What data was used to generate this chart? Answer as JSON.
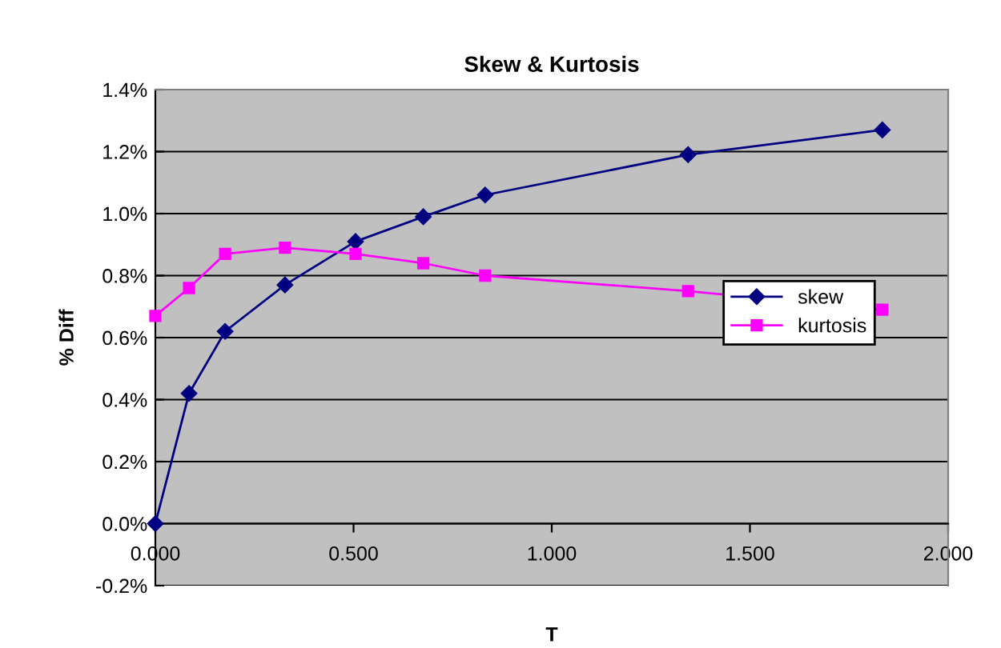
{
  "chart_data": {
    "type": "line",
    "title": "Skew & Kurtosis",
    "xlabel": "T",
    "ylabel": "% Diff",
    "xlim": [
      0,
      2
    ],
    "xticks": [
      {
        "value": 0,
        "label": "0.000"
      },
      {
        "value": 0.5,
        "label": "0.500"
      },
      {
        "value": 1,
        "label": "1.000"
      },
      {
        "value": 1.5,
        "label": "1.500"
      },
      {
        "value": 2,
        "label": "2.000"
      }
    ],
    "ylim": [
      -0.2,
      1.4
    ],
    "yticks": [
      {
        "value": -0.2,
        "label": "-0.2%"
      },
      {
        "value": 0,
        "label": "0.0%"
      },
      {
        "value": 0.2,
        "label": "0.2%"
      },
      {
        "value": 0.4,
        "label": "0.4%"
      },
      {
        "value": 0.6,
        "label": "0.6%"
      },
      {
        "value": 0.8,
        "label": "0.8%"
      },
      {
        "value": 1.0,
        "label": "1.0%"
      },
      {
        "value": 1.2,
        "label": "1.2%"
      },
      {
        "value": 1.4,
        "label": "1.4%"
      }
    ],
    "grid": "y",
    "legend": "right",
    "line_style": "solid",
    "series": [
      {
        "name": "skew",
        "color": "#000080",
        "marker": "diamond",
        "x": [
          0,
          0.085,
          0.176,
          0.327,
          0.505,
          0.676,
          0.832,
          1.344,
          1.834
        ],
        "values": [
          0,
          0.42,
          0.62,
          0.77,
          0.91,
          0.99,
          1.06,
          1.19,
          1.27
        ]
      },
      {
        "name": "kurtosis",
        "color": "#ff00ff",
        "marker": "square",
        "x": [
          0,
          0.085,
          0.176,
          0.327,
          0.505,
          0.676,
          0.832,
          1.344,
          1.834
        ],
        "values": [
          0.67,
          0.76,
          0.87,
          0.89,
          0.87,
          0.84,
          0.8,
          0.75,
          0.69
        ]
      }
    ]
  }
}
